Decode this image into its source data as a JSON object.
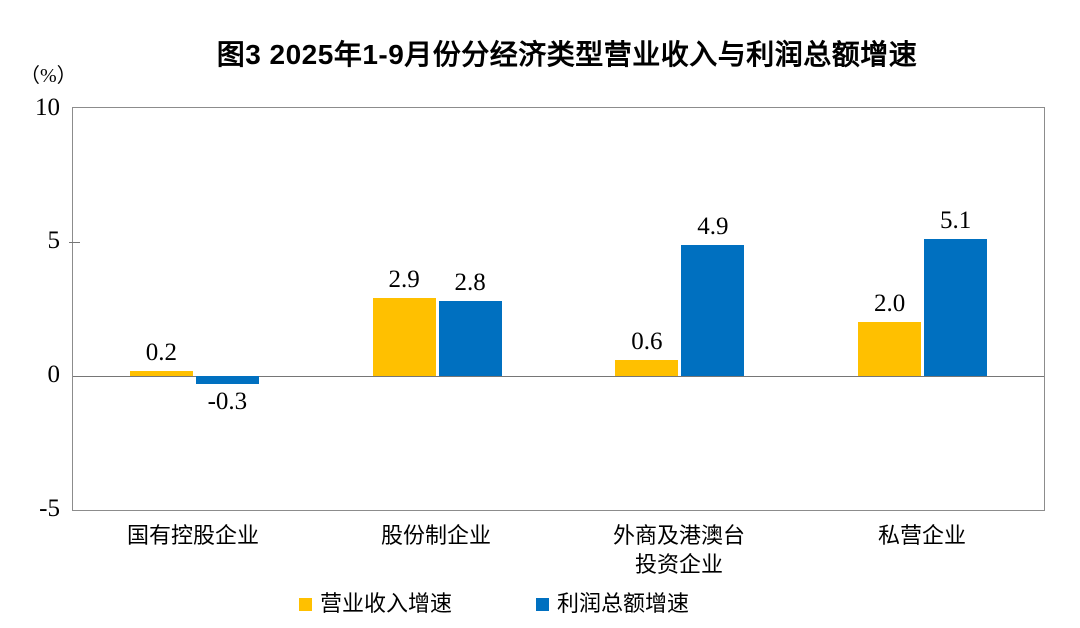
{
  "chart_data": {
    "type": "bar",
    "title": "图3 2025年1-9月份分经济类型营业收入与利润总额增速",
    "unit_label": "（%）",
    "categories": [
      "国有控股企业",
      "股份制企业",
      "外商及港澳台\n投资企业",
      "私营企业"
    ],
    "series": [
      {
        "name": "营业收入增速",
        "color": "#FFC000",
        "values": [
          0.2,
          2.9,
          0.6,
          2.0
        ],
        "value_labels": [
          "0.2",
          "2.9",
          "0.6",
          "2.0"
        ]
      },
      {
        "name": "利润总额增速",
        "color": "#0070C0",
        "values": [
          -0.3,
          2.8,
          4.9,
          5.1
        ],
        "value_labels": [
          "-0.3",
          "2.8",
          "4.9",
          "5.1"
        ]
      }
    ],
    "ylim": [
      -5,
      10
    ],
    "yticks": [
      10,
      5,
      0,
      -5
    ],
    "ytick_labels": [
      "10",
      "5",
      "0",
      "-5"
    ],
    "xlabel": "",
    "ylabel": "（%）",
    "grid": false,
    "legend_position": "bottom",
    "axis_color": "#8c8c8c",
    "background": "#ffffff"
  }
}
